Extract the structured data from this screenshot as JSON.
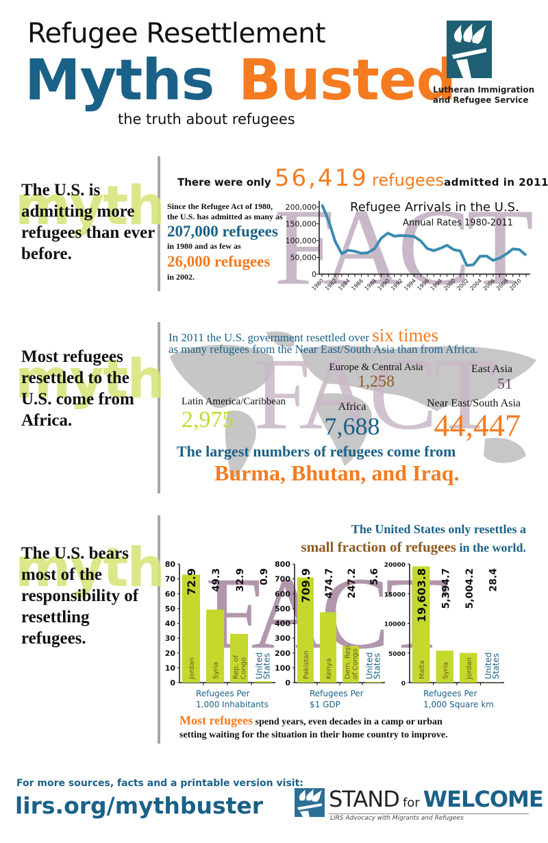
{
  "header": {
    "title_line1": "Refugee Resettlement",
    "title_myths": "Myths",
    "title_busted": "Busted",
    "subtitle": "the truth about refugees",
    "org_logo_line1": "Lutheran Immigration",
    "org_logo_line2": "and Refugee Service"
  },
  "colors": {
    "teal": "#1a6188",
    "orange": "#f47b20",
    "lime": "#c5d82e",
    "brown": "#8b5a23",
    "purple": "#6e3f63",
    "fact_watermark": "#c9b8c8",
    "myth_watermark": "#d8e57c"
  },
  "watermarks": {
    "myth": "myth",
    "fact": "FACT"
  },
  "section1": {
    "myth": "The U.S. is admitting more refugees than ever before.",
    "headline_pre": "There were only",
    "headline_number": "56,419",
    "headline_word": "refugees",
    "headline_post": "admitted in 2011.",
    "side_line1": "Since the Refugee Act of 1980,",
    "side_line2": "the U.S. has admitted as many as",
    "side_big1": "207,000 refugees",
    "side_line3": "in 1980 and as few as",
    "side_big2": "26,000 refugees",
    "side_line4": "in 2002."
  },
  "section2": {
    "myth": "Most refugees resettled to the U.S. come from Africa.",
    "line1_pre": "In 2011 the U.S. government resettled over",
    "line1_emph": "six times",
    "line2": "as many refugees from the Near East/South Asia than from Africa.",
    "regions": [
      {
        "name": "Europe & Central Asia",
        "value": "1,258"
      },
      {
        "name": "East Asia",
        "value": "51"
      },
      {
        "name": "Latin America/Caribbean",
        "value": "2,975"
      },
      {
        "name": "Africa",
        "value": "7,688"
      },
      {
        "name": "Near East/South Asia",
        "value": "44,447"
      }
    ],
    "largest_line": "The largest numbers of refugees come from",
    "largest_countries": "Burma, Bhutan, and Iraq."
  },
  "section3": {
    "myth": "The U.S. bears most of the responsibility of resettling refugees.",
    "head1": "The United States only resettles a",
    "head2_emph": "small fraction of refugees",
    "head2_rest": "in the world.",
    "foot_emph": "Most refugees",
    "foot_rest1": "spend years, even decades in a camp or urban",
    "foot_rest2": "setting waiting for the situation in their home country to improve."
  },
  "footer": {
    "more_text": "For more sources, facts and a printable version visit:",
    "url": "lirs.org/mythbuster",
    "logo_stand": "STAND",
    "logo_for": "for",
    "logo_welcome": "WELCOME",
    "logo_tagline": "LIRS Advocacy with Migrants and Refugees"
  },
  "chart_data": [
    {
      "type": "line",
      "title": "Refugee Arrivals in the U.S.",
      "subtitle": "Annual Rates 1980-2011",
      "x": [
        1980,
        1981,
        1982,
        1983,
        1984,
        1985,
        1986,
        1987,
        1988,
        1989,
        1990,
        1991,
        1992,
        1993,
        1994,
        1995,
        1996,
        1997,
        1998,
        1999,
        2000,
        2001,
        2002,
        2003,
        2004,
        2005,
        2006,
        2007,
        2008,
        2009,
        2010,
        2011
      ],
      "y": [
        207000,
        160000,
        98000,
        61000,
        71000,
        68000,
        62000,
        64000,
        76000,
        107000,
        122000,
        113000,
        115000,
        114000,
        112000,
        99000,
        76000,
        70000,
        77000,
        86000,
        73000,
        69000,
        26000,
        28000,
        53000,
        54000,
        41000,
        48000,
        60000,
        75000,
        73000,
        56000
      ],
      "xticks": [
        "1980",
        "1982",
        "1984",
        "1986",
        "1988",
        "1990",
        "1992",
        "1994",
        "1996",
        "1998",
        "2000",
        "2002",
        "2004",
        "2006",
        "2008",
        "2010"
      ],
      "yticks": [
        "0",
        "50,000",
        "100,000",
        "150,000",
        "200,000"
      ],
      "ylim": [
        0,
        200000
      ],
      "series_color": "#3a8bb0"
    },
    {
      "type": "bar",
      "xlabel": "Refugees Per 1,000 Inhabitants",
      "xlabel_line1": "Refugees Per",
      "xlabel_line2": "1,000 Inhabitants",
      "categories": [
        "Jordan",
        "Syria",
        "Rep. of Congo",
        "United States"
      ],
      "values": [
        72.9,
        49.3,
        32.9,
        0.9
      ],
      "value_labels": [
        "72.9",
        "49.3",
        "32.9",
        "0.9"
      ],
      "yticks": [
        "0",
        "10",
        "20",
        "30",
        "40",
        "50",
        "60",
        "70",
        "80"
      ],
      "ylim": [
        0,
        80
      ]
    },
    {
      "type": "bar",
      "xlabel": "Refugees Per $1 GDP",
      "xlabel_line1": "Refugees Per",
      "xlabel_line2": "$1 GDP",
      "categories": [
        "Pakistan",
        "Kenya",
        "Dem. Rep. of Congo",
        "United States"
      ],
      "values": [
        709.9,
        474.7,
        247.2,
        5.6
      ],
      "value_labels": [
        "709.9",
        "474.7",
        "247.2",
        "5.6"
      ],
      "yticks": [
        "0",
        "100",
        "200",
        "300",
        "400",
        "500",
        "600",
        "700",
        "800"
      ],
      "ylim": [
        0,
        800
      ]
    },
    {
      "type": "bar",
      "xlabel": "Refugees Per 1,000 Square km",
      "xlabel_line1": "Refugees Per",
      "xlabel_line2": "1,000 Square km",
      "categories": [
        "Malta",
        "Syria",
        "Jordan",
        "United States"
      ],
      "values": [
        19603.8,
        5394.7,
        5004.2,
        28.4
      ],
      "value_labels": [
        "19,603.8",
        "5,394.7",
        "5,004.2",
        "28.4"
      ],
      "yticks": [
        "0",
        "5000",
        "10000",
        "15000",
        "20000"
      ],
      "ylim": [
        0,
        20000
      ]
    }
  ]
}
